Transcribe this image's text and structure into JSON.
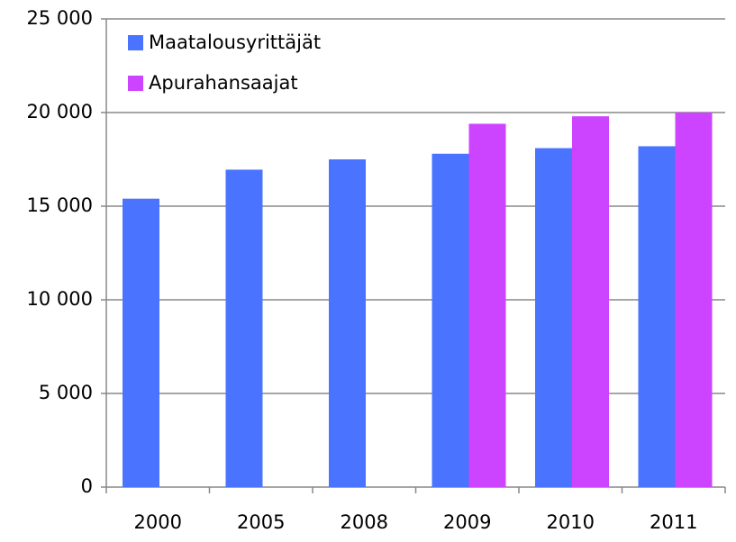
{
  "chart_data": {
    "type": "bar",
    "categories": [
      "2000",
      "2005",
      "2008",
      "2009",
      "2010",
      "2011"
    ],
    "series": [
      {
        "name": "Maatalousyrittäjät",
        "color": "#4a74ff",
        "values": [
          15400,
          16950,
          17500,
          17800,
          18100,
          18200
        ]
      },
      {
        "name": "Apurahansaajat",
        "color": "#cc44ff",
        "values": [
          null,
          null,
          null,
          19400,
          19800,
          20000
        ]
      }
    ],
    "ylim": [
      0,
      25000
    ],
    "yticks": [
      0,
      {
        "value": 5000,
        "label": "5 000"
      },
      {
        "value": 10000,
        "label": "10 000"
      },
      {
        "value": 15000,
        "label": "15 000"
      },
      {
        "value": 20000,
        "label": "20 000"
      },
      {
        "value": 25000,
        "label": "25 000"
      }
    ],
    "grid": true,
    "legend": "top-left"
  }
}
